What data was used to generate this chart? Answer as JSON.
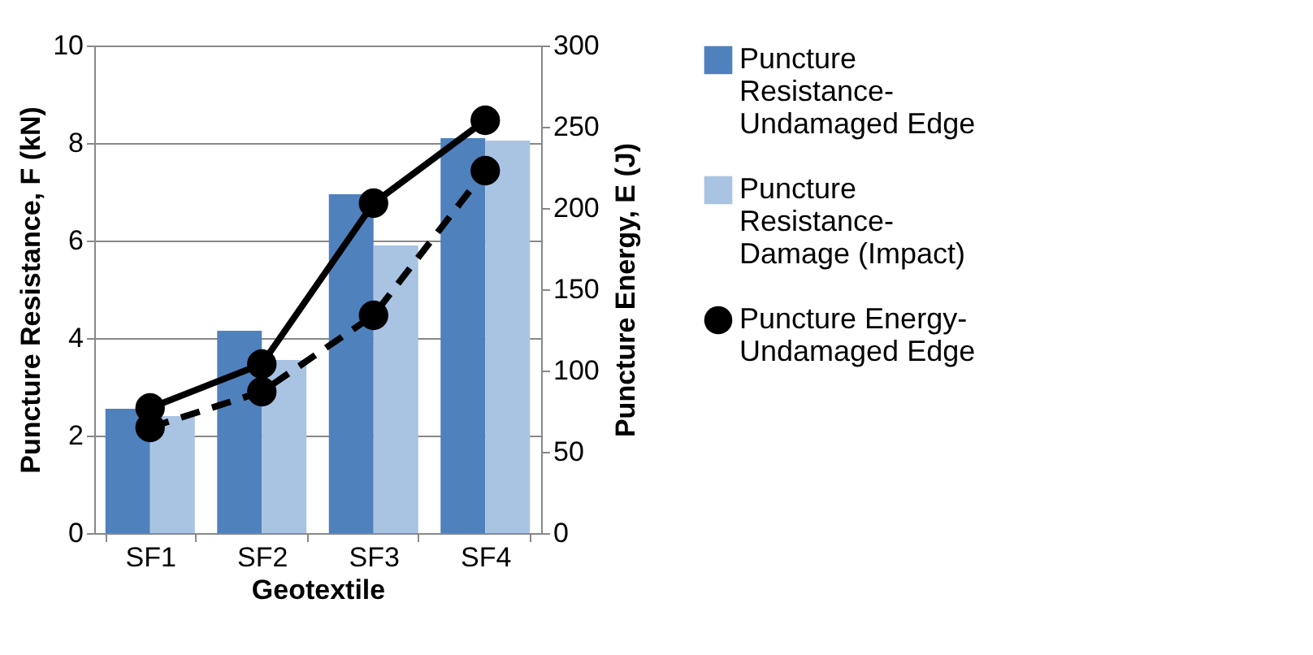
{
  "chart_data": {
    "type": "bar",
    "xlabel": "Geotextile",
    "ylabel": "Puncture Resistance, F (kN)",
    "y2label": "Puncture Energy, E (J)",
    "categories": [
      "SF1",
      "SF2",
      "SF3",
      "SF4"
    ],
    "series": [
      {
        "name": "Puncture Resistance-Undamaged Edge",
        "color": "#4f81bd",
        "values": [
          2.55,
          4.15,
          6.95,
          8.1
        ]
      },
      {
        "name": "Puncture Resistance-Damage (Impact)",
        "color": "#a9c3e3",
        "values": [
          2.4,
          3.55,
          5.9,
          8.05
        ]
      },
      {
        "name": "Puncture Energy-Undamaged Edge",
        "type": "line",
        "axis": "y2",
        "color": "#000000",
        "line_style": "solid",
        "values": [
          77,
          104,
          203,
          254
        ]
      },
      {
        "type": "line",
        "axis": "y2",
        "color": "#000000",
        "line_style": "dashed",
        "values": [
          65,
          87,
          134,
          223
        ]
      }
    ],
    "ylim": [
      0,
      10
    ],
    "yticks": [
      0,
      2,
      4,
      6,
      8,
      10
    ],
    "y2lim": [
      0,
      300
    ],
    "y2ticks": [
      0,
      50,
      100,
      150,
      200,
      250,
      300
    ],
    "grid": "y",
    "legend": "right",
    "marker": "circle"
  }
}
